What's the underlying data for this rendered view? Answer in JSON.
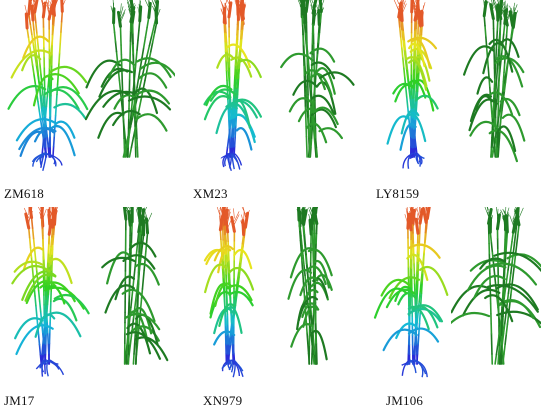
{
  "figure": {
    "panels": [
      {
        "label": "ZM618",
        "colored": {
          "plant": "wheat-plant-colored",
          "tall": 1.0,
          "spread": 1.0,
          "tilt": -0.05
        },
        "green": {
          "plant": "wheat-plant-green",
          "tall": 1.0,
          "spread": 1.15,
          "tilt": 0.15
        }
      },
      {
        "label": "XM23",
        "colored": {
          "plant": "wheat-plant-colored",
          "tall": 0.98,
          "spread": 0.8,
          "tilt": 0.05
        },
        "green": {
          "plant": "wheat-plant-green",
          "tall": 1.0,
          "spread": 0.85,
          "tilt": 0.0
        }
      },
      {
        "label": "LY8159",
        "colored": {
          "plant": "wheat-plant-colored",
          "tall": 0.95,
          "spread": 0.7,
          "tilt": -0.1
        },
        "green": {
          "plant": "wheat-plant-green",
          "tall": 1.0,
          "spread": 0.8,
          "tilt": 0.05
        }
      },
      {
        "label": "JM17",
        "colored": {
          "plant": "wheat-plant-colored",
          "tall": 1.0,
          "spread": 0.95,
          "tilt": 0.0
        },
        "green": {
          "plant": "wheat-plant-green",
          "tall": 1.0,
          "spread": 0.9,
          "tilt": 0.1
        }
      },
      {
        "label": "XN979",
        "colored": {
          "plant": "wheat-plant-colored",
          "tall": 0.95,
          "spread": 0.65,
          "tilt": 0.05
        },
        "green": {
          "plant": "wheat-plant-green",
          "tall": 0.95,
          "spread": 0.6,
          "tilt": -0.05
        }
      },
      {
        "label": "JM106",
        "colored": {
          "plant": "wheat-plant-colored",
          "tall": 0.98,
          "spread": 0.9,
          "tilt": 0.0
        },
        "green": {
          "plant": "wheat-plant-green",
          "tall": 1.0,
          "spread": 1.3,
          "tilt": 0.1
        }
      }
    ],
    "colors": {
      "heightmap_low": "#2a2ad8",
      "heightmap_mid_low": "#14b9d8",
      "heightmap_mid": "#2fd021",
      "heightmap_mid_high": "#e8e51e",
      "heightmap_high": "#e2462a",
      "green_plant": "#2e9a2e",
      "green_plant_dark": "#1e7a22"
    }
  }
}
